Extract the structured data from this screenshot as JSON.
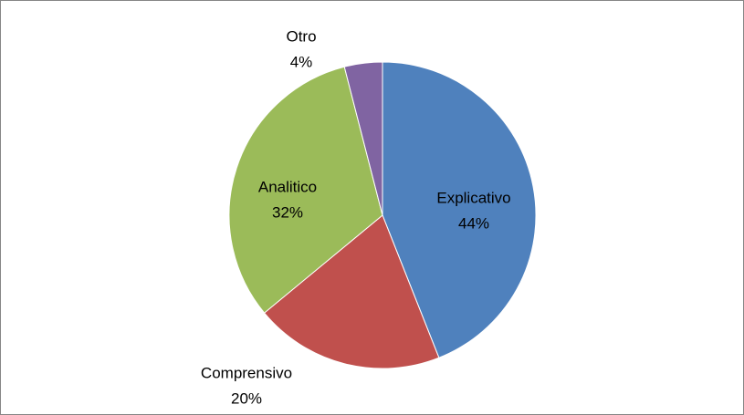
{
  "chart_data": {
    "type": "pie",
    "categories": [
      "Explicativo",
      "Comprensivo",
      "Analitico",
      "Otro"
    ],
    "values": [
      44,
      20,
      32,
      4
    ],
    "value_labels": [
      "44%",
      "20%",
      "32%",
      "4%"
    ],
    "colors": [
      "#4f81bd",
      "#c0504d",
      "#9bbb59",
      "#8064a2"
    ]
  }
}
